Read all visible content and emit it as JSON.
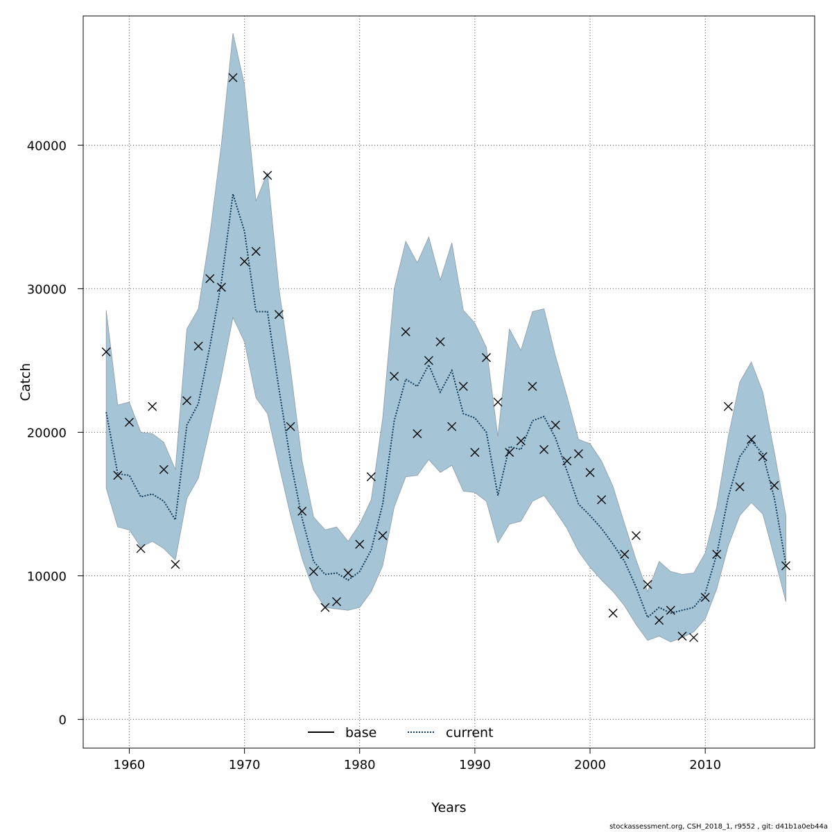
{
  "chart_data": {
    "type": "line",
    "title": "",
    "xlabel": "Years",
    "ylabel": "Catch",
    "xlim": [
      1956,
      2019.5
    ],
    "ylim": [
      -2000,
      49000
    ],
    "xticks": [
      1960,
      1970,
      1980,
      1990,
      2000,
      2010
    ],
    "yticks": [
      0,
      10000,
      20000,
      30000,
      40000
    ],
    "grid": true,
    "legend": {
      "placement": "bottom-center",
      "entries": [
        "base",
        "current"
      ]
    },
    "colors": {
      "band": "#a5c5d6",
      "band_edge": "#8a9aa6",
      "current_line": "#0d3a5c",
      "base_line": "#000000",
      "grid": "#555555"
    },
    "footer": "stockassessment.org, CSH_2018_1, r9552 , git: d41b1a0eb44a",
    "x": [
      1958,
      1959,
      1960,
      1961,
      1962,
      1963,
      1964,
      1965,
      1966,
      1967,
      1968,
      1969,
      1970,
      1971,
      1972,
      1973,
      1974,
      1975,
      1976,
      1977,
      1978,
      1979,
      1980,
      1981,
      1982,
      1983,
      1984,
      1985,
      1986,
      1987,
      1988,
      1989,
      1990,
      1991,
      1992,
      1993,
      1994,
      1995,
      1996,
      1997,
      1998,
      1999,
      2000,
      2001,
      2002,
      2003,
      2004,
      2005,
      2006,
      2007,
      2008,
      2009,
      2010,
      2011,
      2012,
      2013,
      2014,
      2015,
      2016,
      2017
    ],
    "series": [
      {
        "name": "current",
        "style": "dotted",
        "values": [
          21400,
          17100,
          17000,
          15500,
          15700,
          15200,
          13900,
          20500,
          22000,
          26000,
          30500,
          36600,
          34000,
          28400,
          28400,
          23000,
          18000,
          14000,
          11000,
          10100,
          10200,
          9700,
          10300,
          11800,
          15000,
          20800,
          23700,
          23200,
          24700,
          22800,
          24300,
          21300,
          21000,
          20000,
          15600,
          19000,
          18800,
          20800,
          21100,
          19600,
          17300,
          15000,
          14200,
          13300,
          12200,
          11000,
          9200,
          7100,
          7800,
          7400,
          7600,
          7800,
          8800,
          11500,
          15500,
          18300,
          19400,
          18500,
          15400,
          10800
        ],
        "lower": [
          16100,
          13400,
          13200,
          12000,
          12400,
          11900,
          11100,
          15400,
          16800,
          20300,
          23900,
          28000,
          26300,
          22400,
          21300,
          17700,
          14200,
          11200,
          9000,
          7800,
          7700,
          7600,
          7800,
          8900,
          10700,
          14800,
          16900,
          17000,
          18100,
          17200,
          17700,
          15900,
          15800,
          15200,
          12300,
          13600,
          13800,
          15200,
          15600,
          14500,
          13300,
          11700,
          10600,
          9700,
          8900,
          7900,
          6600,
          5500,
          5800,
          5400,
          5700,
          6100,
          7000,
          9100,
          12100,
          14200,
          15100,
          14300,
          11300,
          8200
        ],
        "upper": [
          28500,
          21900,
          22100,
          20000,
          19900,
          19300,
          17400,
          27200,
          28600,
          33800,
          40100,
          47800,
          44200,
          36100,
          38100,
          30000,
          24400,
          18000,
          14100,
          13200,
          13400,
          12400,
          13600,
          15300,
          21000,
          30000,
          33300,
          31800,
          33600,
          30600,
          33200,
          28500,
          27600,
          25900,
          19700,
          27200,
          25700,
          28400,
          28600,
          25300,
          22500,
          19500,
          19200,
          18000,
          16200,
          13600,
          11100,
          8900,
          11000,
          10300,
          10100,
          10200,
          11600,
          14800,
          19700,
          23500,
          24900,
          22800,
          18600,
          14200
        ]
      },
      {
        "name": "base",
        "style": "solid",
        "values": [
          21400,
          17100,
          17000,
          15500,
          15700,
          15200,
          13900,
          20500,
          22000,
          26000,
          30500,
          36600,
          34000,
          28400,
          28400,
          23000,
          18000,
          14000,
          11000,
          10100,
          10200,
          9700,
          10300,
          11800,
          15000,
          20800,
          23700,
          23200,
          24700,
          22800,
          24300,
          21300,
          21000,
          20000,
          15600,
          19000,
          18800,
          20800,
          21100,
          19600,
          17300,
          15000,
          14200,
          13300,
          12200,
          11000,
          9200,
          7100,
          7800,
          7400,
          7600,
          7800,
          8800,
          11500,
          15500,
          18300,
          19400,
          18500,
          15400,
          10800
        ]
      }
    ],
    "observed": [
      25600,
      17000,
      20700,
      11900,
      21800,
      17400,
      10800,
      22200,
      26000,
      30700,
      30100,
      44700,
      31900,
      32600,
      37900,
      28200,
      20400,
      14500,
      10300,
      7800,
      8200,
      10200,
      12200,
      16900,
      12800,
      23900,
      27000,
      19900,
      25000,
      26300,
      20400,
      23200,
      18600,
      25200,
      22100,
      18600,
      19400,
      23200,
      18800,
      20500,
      18000,
      18500,
      17200,
      15300,
      7400,
      11500,
      12800,
      9400,
      6900,
      7600,
      5800,
      5700,
      8500,
      11500,
      21800,
      16200,
      19500,
      18300,
      16300,
      10700
    ]
  }
}
